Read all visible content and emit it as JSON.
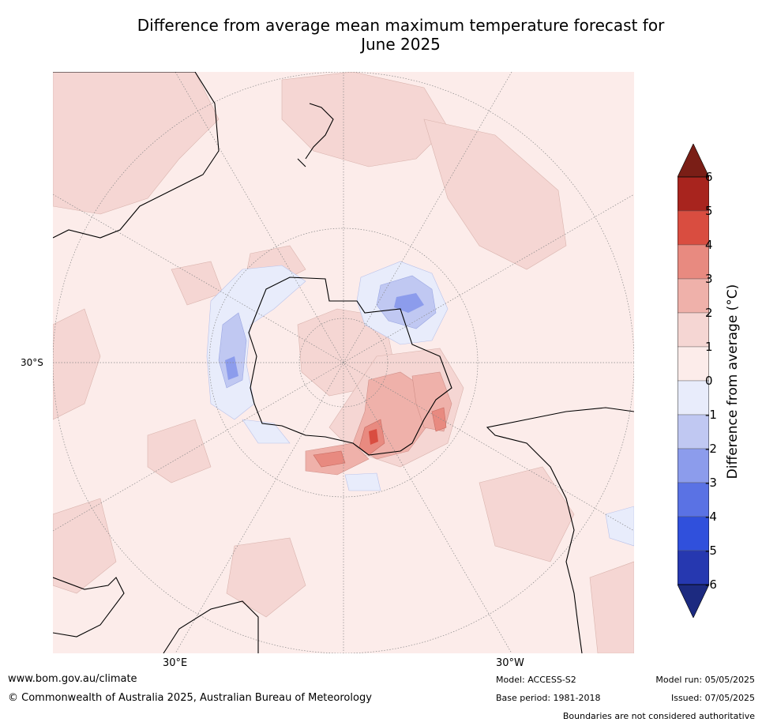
{
  "title_line1": "Difference from average mean maximum temperature forecast for",
  "title_line2": "June 2025",
  "map": {
    "projection": "south-polar-stereographic",
    "lat_labels": [
      "30°S"
    ],
    "lon_labels": [
      "30°E",
      "30°W"
    ],
    "land_outline_color": "#000000",
    "graticule_color": "#888888"
  },
  "colorbar": {
    "label": "Difference from average ($^\\circ$C)",
    "label_rendered": "Difference from average (°C)",
    "ticks": [
      "6",
      "5",
      "4",
      "3",
      "2",
      "1",
      "0",
      "-1",
      "-2",
      "-3",
      "-4",
      "-5",
      "-6"
    ],
    "levels": [
      {
        "range": [
          5,
          6
        ],
        "color": "#a8241e"
      },
      {
        "range": [
          4,
          5
        ],
        "color": "#d94d40"
      },
      {
        "range": [
          3,
          4
        ],
        "color": "#e88a80"
      },
      {
        "range": [
          2,
          3
        ],
        "color": "#efb1aa"
      },
      {
        "range": [
          1,
          2
        ],
        "color": "#f5d6d3"
      },
      {
        "range": [
          0,
          1
        ],
        "color": "#fcecea"
      },
      {
        "range": [
          -1,
          0
        ],
        "color": "#e8ecfb"
      },
      {
        "range": [
          -2,
          -1
        ],
        "color": "#c0c8f2"
      },
      {
        "range": [
          -3,
          -2
        ],
        "color": "#8c9cec"
      },
      {
        "range": [
          -4,
          -3
        ],
        "color": "#5a72e4"
      },
      {
        "range": [
          -5,
          -4
        ],
        "color": "#3050dc"
      },
      {
        "range": [
          -6,
          -5
        ],
        "color": "#2638b0"
      }
    ],
    "over_color": "#7a1e16",
    "under_color": "#1c2a80"
  },
  "footer": {
    "website": "www.bom.gov.au/climate",
    "copyright": "© Commonwealth of Australia 2025, Australian Bureau of Meteorology",
    "model": "Model: ACCESS-S2",
    "base_period": "Base period: 1981-2018",
    "model_run": "Model run: 05/05/2025",
    "issued": "Issued: 07/05/2025",
    "disclaimer": "Boundaries are not considered authoritative"
  }
}
